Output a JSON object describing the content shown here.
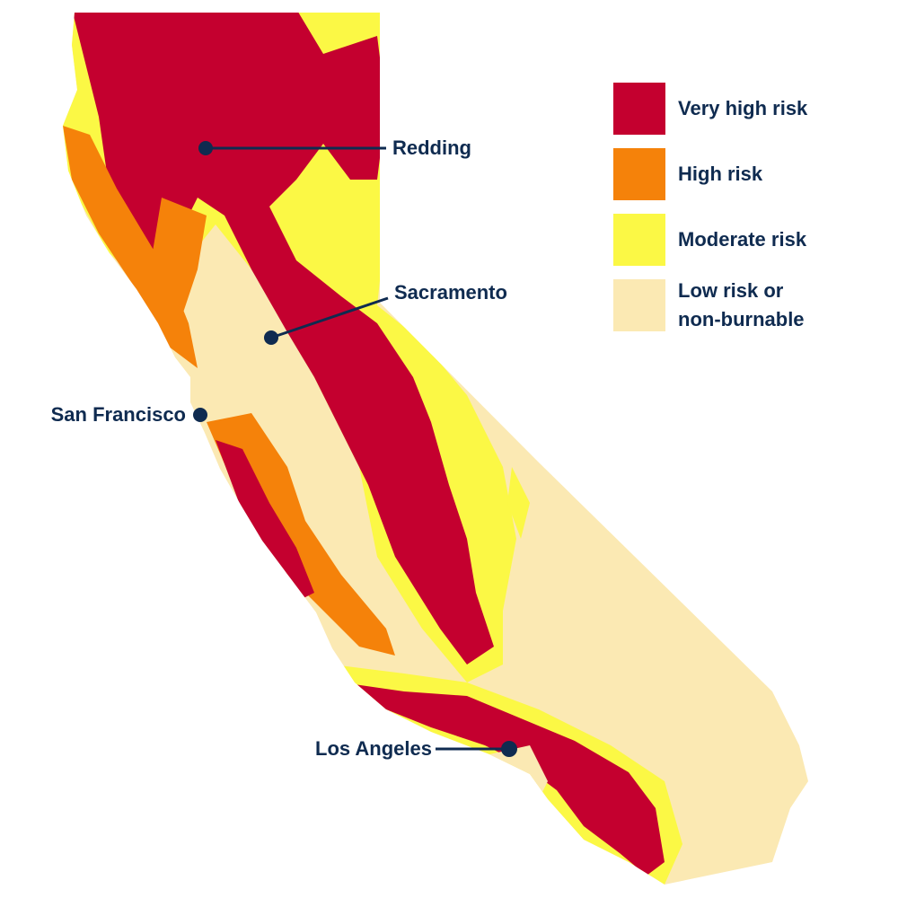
{
  "colors": {
    "very_high": "#c4002f",
    "high": "#f5820a",
    "moderate": "#fbf845",
    "low": "#fbe9b3",
    "text": "#0f2b50",
    "marker": "#0f2b50"
  },
  "cities": [
    {
      "name": "Redding"
    },
    {
      "name": "Sacramento"
    },
    {
      "name": "San Francisco"
    },
    {
      "name": "Los Angeles"
    }
  ],
  "legend": {
    "items": [
      {
        "label": "Very high risk",
        "color_key": "very_high"
      },
      {
        "label": "High risk",
        "color_key": "high"
      },
      {
        "label": "Moderate risk",
        "color_key": "moderate"
      },
      {
        "label": "Low risk or non-burnable",
        "line1": "Low risk or",
        "line2": "non-burnable",
        "color_key": "low"
      }
    ]
  }
}
